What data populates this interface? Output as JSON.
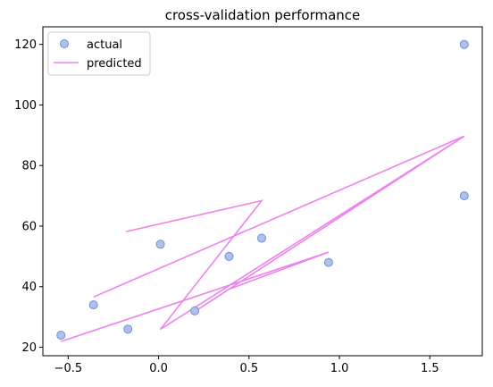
{
  "chart_data": {
    "type": "scatter",
    "title": "cross-validation performance",
    "xlabel": "",
    "ylabel": "",
    "xlim": [
      -0.64,
      1.79
    ],
    "ylim": [
      17.2,
      125.8
    ],
    "xticks": [
      -0.5,
      0.0,
      0.5,
      1.0,
      1.5
    ],
    "xtick_labels": [
      "−0.5",
      "0.0",
      "0.5",
      "1.0",
      "1.5"
    ],
    "yticks": [
      20,
      40,
      60,
      80,
      100,
      120
    ],
    "ytick_labels": [
      "20",
      "40",
      "60",
      "80",
      "100",
      "120"
    ],
    "grid": false,
    "legend_position": "upper-left",
    "series": [
      {
        "name": "actual",
        "kind": "scatter",
        "color": "#aec0ec",
        "edge_color": "#6f8fd8",
        "x": [
          -0.54,
          -0.36,
          -0.17,
          0.01,
          0.2,
          0.39,
          0.57,
          0.94,
          1.69,
          1.69
        ],
        "y": [
          24,
          34,
          26,
          54,
          32,
          50,
          56,
          48,
          70,
          120
        ]
      },
      {
        "name": "predicted",
        "kind": "line",
        "color": "#ee82ee",
        "x": [
          -0.18,
          0.57,
          0.01,
          1.69,
          -0.36,
          1.69,
          0.2,
          1.69,
          0.39,
          0.94,
          -0.54
        ],
        "y": [
          58.2,
          68.4,
          25.9,
          89.7,
          36.6,
          89.7,
          31.8,
          89.7,
          39.2,
          51.4,
          21.9
        ]
      }
    ]
  }
}
